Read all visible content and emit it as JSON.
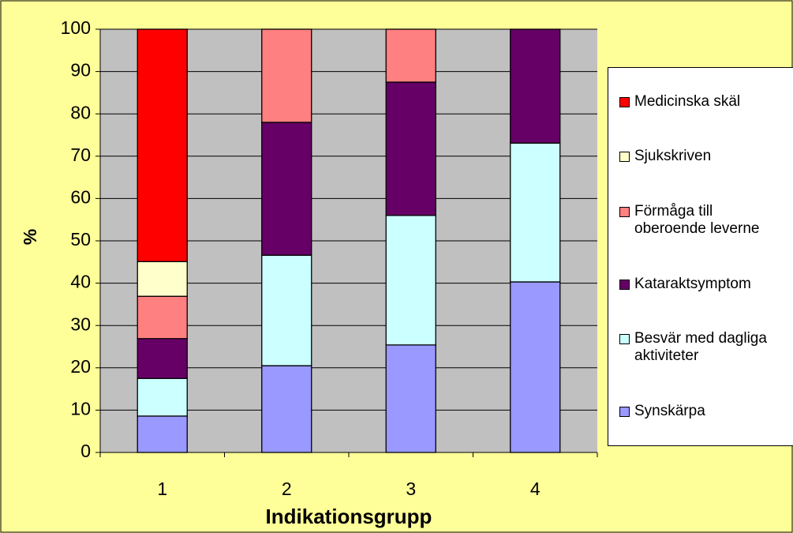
{
  "chart_data": {
    "type": "stacked_bar",
    "x_label": "Indikationsgrupp",
    "y_label": "%",
    "categories": [
      "1",
      "2",
      "3",
      "4"
    ],
    "series": [
      {
        "name": "Synskärpa",
        "color": "#9999ff",
        "values": [
          8.6,
          20.5,
          25.4,
          40.3
        ]
      },
      {
        "name": "Besvär med dagliga aktiviteter",
        "color": "#ccffff",
        "values": [
          8.9,
          26.1,
          30.6,
          32.8
        ]
      },
      {
        "name": "Kataraktsymptom",
        "color": "#660066",
        "values": [
          9.4,
          31.4,
          31.5,
          26.9
        ]
      },
      {
        "name": "Förmåga till oberoende leverne",
        "color": "#ff8080",
        "values": [
          10.0,
          22.0,
          12.5,
          0
        ]
      },
      {
        "name": "Sjukskriven",
        "color": "#ffffcc",
        "values": [
          8.2,
          0,
          0,
          0
        ]
      },
      {
        "name": "Medicinska skäl",
        "color": "#ff0000",
        "values": [
          54.9,
          0,
          0,
          0
        ]
      }
    ],
    "ylim": [
      0,
      100
    ],
    "yticks": [
      0,
      10,
      20,
      30,
      40,
      50,
      60,
      70,
      80,
      90,
      100
    ],
    "grid": true,
    "legend": "right"
  }
}
